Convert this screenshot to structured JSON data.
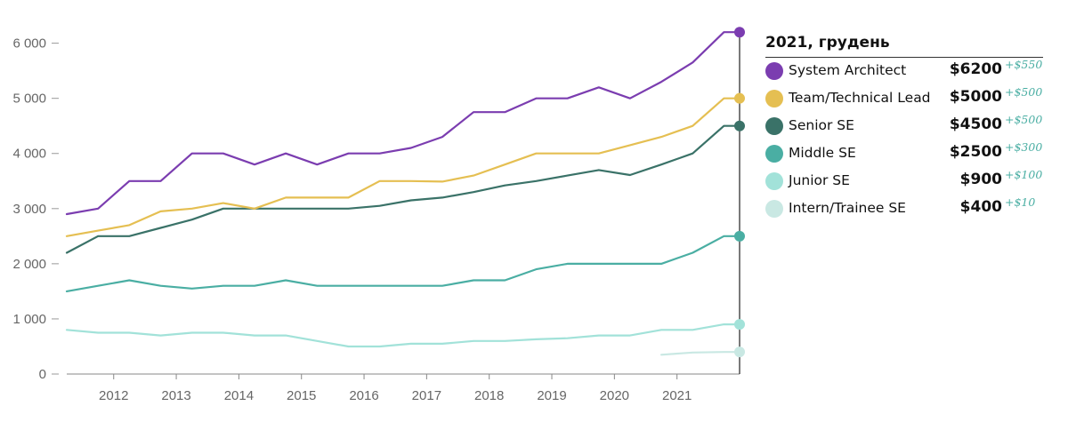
{
  "chart_data": {
    "type": "line",
    "title": "",
    "xlabel": "",
    "ylabel": "",
    "ylim": [
      0,
      6300
    ],
    "xlim": [
      2011.25,
      2022.0
    ],
    "y_ticks": [
      0,
      1000,
      2000,
      3000,
      4000,
      5000,
      6000
    ],
    "y_tick_labels": [
      "0",
      "1 000",
      "2 000",
      "3 000",
      "4 000",
      "5 000",
      "6 000"
    ],
    "x_ticks": [
      2012,
      2013,
      2014,
      2015,
      2016,
      2017,
      2018,
      2019,
      2020,
      2021
    ],
    "x_tick_labels": [
      "2012",
      "2013",
      "2014",
      "2015",
      "2016",
      "2017",
      "2018",
      "2019",
      "2020",
      "2021"
    ],
    "grid": false,
    "cursor_x": 2022.0,
    "series": [
      {
        "name": "System Architect",
        "color": "#7b3db0",
        "x": [
          2011.25,
          2011.75,
          2012.25,
          2012.75,
          2013.25,
          2013.75,
          2014.25,
          2014.75,
          2015.25,
          2015.75,
          2016.25,
          2016.75,
          2017.25,
          2017.75,
          2018.25,
          2018.75,
          2019.25,
          2019.75,
          2020.25,
          2020.75,
          2021.25,
          2021.75,
          2022.0
        ],
        "y": [
          2900,
          3000,
          3500,
          3500,
          4000,
          4000,
          3800,
          4000,
          3800,
          4000,
          4000,
          4100,
          4300,
          4750,
          4750,
          5000,
          5000,
          5200,
          5000,
          5300,
          5650,
          6200,
          6200
        ]
      },
      {
        "name": "Team/Technical Lead",
        "color": "#e5bf52",
        "x": [
          2011.25,
          2011.75,
          2012.25,
          2012.75,
          2013.25,
          2013.75,
          2014.25,
          2014.75,
          2015.25,
          2015.75,
          2016.25,
          2016.75,
          2017.25,
          2017.75,
          2018.25,
          2018.75,
          2019.25,
          2019.75,
          2020.25,
          2020.75,
          2021.25,
          2021.75,
          2022.0
        ],
        "y": [
          2500,
          2600,
          2700,
          2950,
          3000,
          3100,
          3000,
          3200,
          3200,
          3200,
          3500,
          3500,
          3490,
          3600,
          3800,
          4000,
          4000,
          4000,
          4150,
          4300,
          4500,
          5000,
          5000
        ]
      },
      {
        "name": "Senior SE",
        "color": "#3a7268",
        "x": [
          2011.25,
          2011.75,
          2012.25,
          2012.75,
          2013.25,
          2013.75,
          2014.25,
          2014.75,
          2015.25,
          2015.75,
          2016.25,
          2016.75,
          2017.25,
          2017.75,
          2018.25,
          2018.75,
          2019.25,
          2019.75,
          2020.25,
          2020.75,
          2021.25,
          2021.75,
          2022.0
        ],
        "y": [
          2200,
          2500,
          2500,
          2650,
          2800,
          3000,
          3000,
          3000,
          3000,
          3000,
          3050,
          3150,
          3200,
          3300,
          3420,
          3500,
          3600,
          3700,
          3610,
          3800,
          4000,
          4500,
          4500
        ]
      },
      {
        "name": "Middle SE",
        "color": "#4aaea3",
        "x": [
          2011.25,
          2011.75,
          2012.25,
          2012.75,
          2013.25,
          2013.75,
          2014.25,
          2014.75,
          2015.25,
          2015.75,
          2016.25,
          2016.75,
          2017.25,
          2017.75,
          2018.25,
          2018.75,
          2019.25,
          2019.75,
          2020.25,
          2020.75,
          2021.25,
          2021.75,
          2022.0
        ],
        "y": [
          1500,
          1600,
          1700,
          1600,
          1550,
          1600,
          1600,
          1700,
          1600,
          1600,
          1600,
          1600,
          1600,
          1700,
          1700,
          1900,
          2000,
          2000,
          2000,
          2000,
          2200,
          2500,
          2500
        ]
      },
      {
        "name": "Junior SE",
        "color": "#a2e2d9",
        "x": [
          2011.25,
          2011.75,
          2012.25,
          2012.75,
          2013.25,
          2013.75,
          2014.25,
          2014.75,
          2015.25,
          2015.75,
          2016.25,
          2016.75,
          2017.25,
          2017.75,
          2018.25,
          2018.75,
          2019.25,
          2019.75,
          2020.25,
          2020.75,
          2021.25,
          2021.75,
          2022.0
        ],
        "y": [
          800,
          750,
          750,
          700,
          750,
          750,
          700,
          700,
          600,
          500,
          500,
          550,
          550,
          600,
          600,
          630,
          650,
          700,
          700,
          800,
          800,
          900,
          900
        ]
      },
      {
        "name": "Intern/Trainee SE",
        "color": "#c9e8e3",
        "x": [
          2020.75,
          2021.25,
          2021.75,
          2022.0
        ],
        "y": [
          350,
          390,
          400,
          400
        ]
      }
    ]
  },
  "legend": {
    "title": "2021, грудень",
    "items": [
      {
        "name": "System Architect",
        "value": "$6200",
        "delta": "+$550",
        "color": "#7b3db0"
      },
      {
        "name": "Team/Technical Lead",
        "value": "$5000",
        "delta": "+$500",
        "color": "#e5bf52"
      },
      {
        "name": "Senior SE",
        "value": "$4500",
        "delta": "+$500",
        "color": "#3a7268"
      },
      {
        "name": "Middle SE",
        "value": "$2500",
        "delta": "+$300",
        "color": "#4aaea3"
      },
      {
        "name": "Junior SE",
        "value": "$900",
        "delta": "+$100",
        "color": "#a2e2d9"
      },
      {
        "name": "Intern/Trainee SE",
        "value": "$400",
        "delta": "+$10",
        "color": "#c9e8e3"
      }
    ]
  }
}
